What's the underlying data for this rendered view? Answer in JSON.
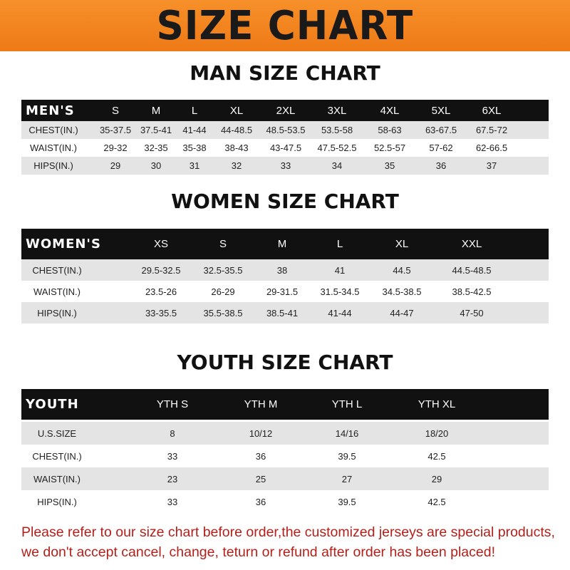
{
  "banner_title": "SIZE CHART",
  "men": {
    "title": "MAN SIZE CHART",
    "header": [
      "MEN'S",
      "S",
      "M",
      "L",
      "XL",
      "2XL",
      "3XL",
      "4XL",
      "5XL",
      "6XL"
    ],
    "rows": [
      [
        "CHEST(IN.)",
        "35-37.5",
        "37.5-41",
        "41-44",
        "44-48.5",
        "48.5-53.5",
        "53.5-58",
        "58-63",
        "63-67.5",
        "67.5-72"
      ],
      [
        "WAIST(IN.)",
        "29-32",
        "32-35",
        "35-38",
        "38-43",
        "43-47.5",
        "47.5-52.5",
        "52.5-57",
        "57-62",
        "62-66.5"
      ],
      [
        "HIPS(IN.)",
        "29",
        "30",
        "31",
        "32",
        "33",
        "34",
        "35",
        "36",
        "37"
      ]
    ]
  },
  "women": {
    "title": "WOMEN SIZE CHART",
    "header": [
      "WOMEN'S",
      "XS",
      "S",
      "M",
      "L",
      "XL",
      "XXL"
    ],
    "rows": [
      [
        "CHEST(IN.)",
        "29.5-32.5",
        "32.5-35.5",
        "38",
        "41",
        "44.5",
        "44.5-48.5"
      ],
      [
        "WAIST(IN.)",
        "23.5-26",
        "26-29",
        "29-31.5",
        "31.5-34.5",
        "34.5-38.5",
        "38.5-42.5"
      ],
      [
        "HIPS(IN.)",
        "33-35.5",
        "35.5-38.5",
        "38.5-41",
        "41-44",
        "44-47",
        "47-50"
      ]
    ]
  },
  "youth": {
    "title": "YOUTH SIZE CHART",
    "header": [
      "YOUTH",
      "YTH S",
      "YTH M",
      "YTH L",
      "YTH XL"
    ],
    "rows": [
      [
        "U.S.SIZE",
        "8",
        "10/12",
        "14/16",
        "18/20"
      ],
      [
        "CHEST(IN.)",
        "33",
        "36",
        "39.5",
        "42.5"
      ],
      [
        "WAIST(IN.)",
        "23",
        "25",
        "27",
        "29"
      ],
      [
        "HIPS(IN.)",
        "33",
        "36",
        "39.5",
        "42.5"
      ]
    ]
  },
  "footer": {
    "line1": "Please refer to our size chart before order,the customized jerseys are special products,",
    "line2": "we don't accept cancel, change, teturn or refund after order has been placed!"
  },
  "colors": {
    "banner": "#f08220",
    "header_row": "#111111",
    "stripe": "#e4e4e4",
    "notice": "#b3201c"
  }
}
